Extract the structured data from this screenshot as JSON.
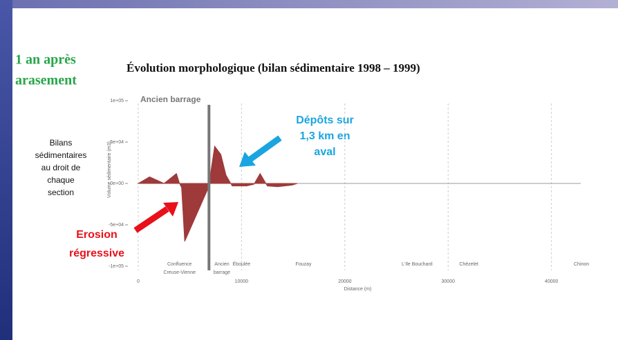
{
  "slide": {
    "heading": [
      "1 an après",
      "arasement"
    ],
    "side_label": [
      "Bilans",
      "sédimentaires",
      "au droit de",
      "chaque",
      "section"
    ],
    "deposit_note": [
      "Dépôts sur",
      "1,3 km en",
      "aval"
    ],
    "erosion_note": [
      "Erosion",
      "régressive"
    ]
  },
  "chart_data": {
    "type": "area",
    "title": "Évolution morphologique (bilan sédimentaire 1998 – 1999)",
    "x_label": "Distance (m)",
    "y_label": "Volume sédimentaire (m3)",
    "dam_label": "Ancien barrage",
    "dam_x": 6850,
    "color": "#9e3a3a",
    "x": [
      0,
      1100,
      2500,
      3000,
      3700,
      4000,
      4200,
      4500,
      6800,
      7400,
      8000,
      8500,
      9100,
      10500,
      11200,
      11800,
      12500,
      13500,
      14900,
      15400
    ],
    "values": [
      0,
      8000,
      0,
      5000,
      12000,
      0,
      -5000,
      -70000,
      -5000,
      45000,
      35000,
      10000,
      -3000,
      -3000,
      -1000,
      12000,
      -3000,
      -4000,
      -2000,
      0
    ],
    "xlim": [
      -1000,
      43500
    ],
    "xticks": [
      0,
      10000,
      20000,
      30000,
      40000
    ],
    "ylim": [
      -105000,
      105000
    ],
    "yticks": [
      {
        "value": -100000,
        "label": "-1e+05"
      },
      {
        "value": -50000,
        "label": "-5e+04"
      },
      {
        "value": 0,
        "label": "0e+00"
      },
      {
        "value": 50000,
        "label": "5e+04"
      },
      {
        "value": 100000,
        "label": "1e+05"
      }
    ],
    "grid": true,
    "locations": [
      {
        "lines": [
          "Confluence",
          "Creuse-Vienne"
        ],
        "x": 4000
      },
      {
        "lines": [
          "Ancien",
          "barrage"
        ],
        "x": 8100
      },
      {
        "lines": [
          "Éboulée"
        ],
        "x": 10000
      },
      {
        "lines": [
          "Fouzay"
        ],
        "x": 16000
      },
      {
        "lines": [
          "L'Ile Bouchard"
        ],
        "x": 27000
      },
      {
        "lines": [
          "Chézelet"
        ],
        "x": 32000
      },
      {
        "lines": [
          "Chinon"
        ],
        "x": 42900
      }
    ]
  }
}
